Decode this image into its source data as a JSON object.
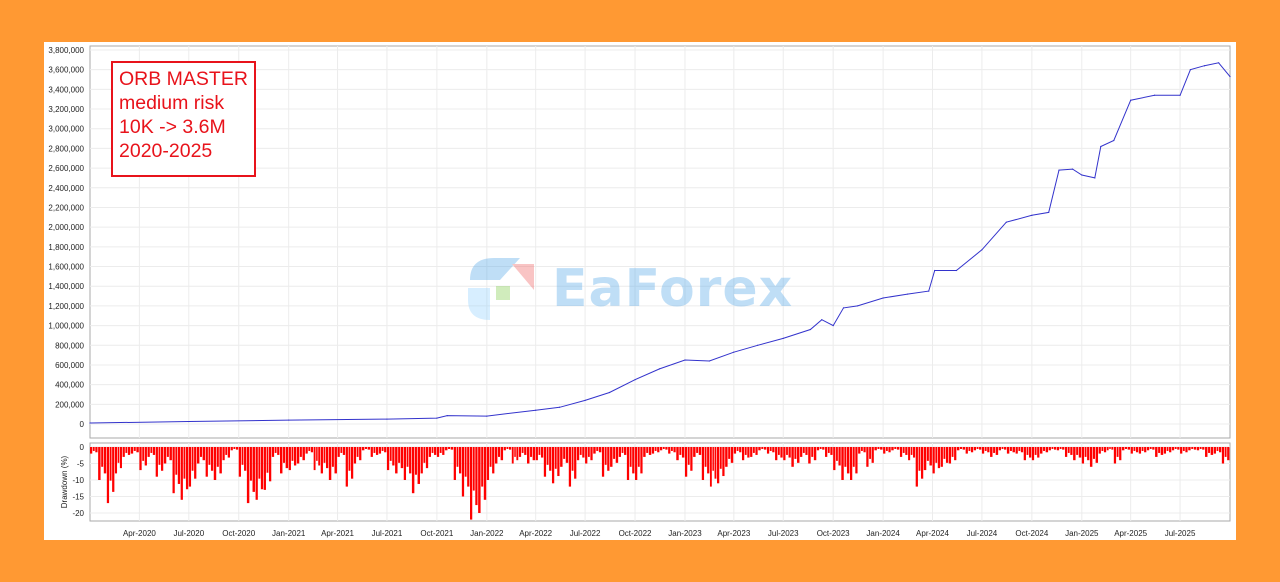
{
  "annotation": {
    "lines": [
      "ORB MASTER",
      "medium risk",
      "10K -> 3.6M",
      "2020-2025"
    ],
    "color": "#e8131b"
  },
  "watermark": {
    "logo_text": "EaForex"
  },
  "colors": {
    "background": "#FF9933",
    "equity_line": "#3333cc",
    "drawdown_bars": "#ff0000"
  },
  "chart_data": [
    {
      "type": "line",
      "title": "",
      "xlabel": "",
      "ylabel": "",
      "ylim": [
        0,
        3800000
      ],
      "yticks": [
        "0",
        "200,000",
        "400,000",
        "600,000",
        "800,000",
        "1,000,000",
        "1,200,000",
        "1,400,000",
        "1,600,000",
        "1,800,000",
        "2,000,000",
        "2,200,000",
        "2,400,000",
        "2,600,000",
        "2,800,000",
        "3,000,000",
        "3,200,000",
        "3,400,000",
        "3,600,000",
        "3,800,000"
      ],
      "xlim": [
        "2020-01-01",
        "2025-10-01"
      ],
      "grid": true,
      "series": [
        {
          "x": [
            "2020-01-01",
            "2020-07-01",
            "2021-01-01",
            "2021-07-01",
            "2021-10-01",
            "2021-10-20",
            "2022-01-01",
            "2022-04-01",
            "2022-05-15",
            "2022-07-01",
            "2022-08-15",
            "2022-10-01",
            "2022-11-15",
            "2023-01-01",
            "2023-02-15",
            "2023-04-01",
            "2023-05-15",
            "2023-07-01",
            "2023-08-20",
            "2023-09-10",
            "2023-10-01",
            "2023-10-20",
            "2023-11-15",
            "2024-01-01",
            "2024-02-15",
            "2024-03-25",
            "2024-04-05",
            "2024-05-15",
            "2024-07-01",
            "2024-08-15",
            "2024-10-01",
            "2024-11-01",
            "2024-11-20",
            "2024-12-15",
            "2025-01-01",
            "2025-01-25",
            "2025-02-05",
            "2025-03-01",
            "2025-04-01",
            "2025-05-15",
            "2025-07-01",
            "2025-07-20",
            "2025-08-15",
            "2025-09-10",
            "2025-10-01"
          ],
          "y": [
            10000,
            25000,
            40000,
            50000,
            60000,
            85000,
            80000,
            140000,
            170000,
            240000,
            320000,
            450000,
            560000,
            650000,
            640000,
            730000,
            800000,
            870000,
            960000,
            1060000,
            1000000,
            1180000,
            1200000,
            1280000,
            1320000,
            1350000,
            1560000,
            1560000,
            1770000,
            2050000,
            2120000,
            2150000,
            2580000,
            2590000,
            2530000,
            2500000,
            2820000,
            2880000,
            3290000,
            3340000,
            3340000,
            3600000,
            3640000,
            3670000,
            3530000
          ]
        }
      ]
    },
    {
      "type": "bar",
      "title": "",
      "ylabel": "Drawdown (%)",
      "ylim": [
        -23,
        0
      ],
      "yticks": [
        "0",
        "-5",
        "-10",
        "-15",
        "-20"
      ],
      "period": "half-month",
      "start": "2020-01-01",
      "values": [
        -2,
        -10,
        -17,
        -8,
        -3,
        -2,
        -7,
        -3,
        -9,
        -5,
        -14,
        -16,
        -12,
        -5,
        -9,
        -10,
        -4,
        -1,
        -9,
        -17,
        -16,
        -13,
        -3,
        -8,
        -7,
        -5,
        -2,
        -7,
        -8,
        -10,
        -3,
        -12,
        -5,
        -1,
        -3,
        -2,
        -7,
        -8,
        -10,
        -14,
        -8,
        -3,
        -3,
        -1,
        -10,
        -15,
        -22,
        -20,
        -10,
        -5,
        -1,
        -5,
        -3,
        -5,
        -4,
        -9,
        -11,
        -6,
        -12,
        -4,
        -5,
        -2,
        -9,
        -6,
        -3,
        -10,
        -10,
        -3,
        -2,
        -1,
        -2,
        -4,
        -9,
        -3,
        -10,
        -12,
        -11,
        -6,
        -2,
        -4,
        -3,
        -1,
        -2,
        -4,
        -4,
        -6,
        -3,
        -5,
        -1,
        -3,
        -7,
        -10,
        -10,
        -2,
        -6,
        -1,
        -2,
        -1,
        -3,
        -4,
        -12,
        -7,
        -8,
        -6,
        -5,
        -1,
        -2,
        -1,
        -2,
        -3,
        -1,
        -2,
        -2,
        -4,
        -4,
        -2,
        -1,
        -1,
        -3,
        -4,
        -5,
        -6,
        -2,
        -1,
        -5,
        -1,
        -2,
        -2,
        -1,
        -3,
        -2,
        -1,
        -2,
        -1,
        -1,
        -3,
        -2,
        -5
      ]
    }
  ],
  "xaxis": {
    "labels": [
      "Apr-2020",
      "Jul-2020",
      "Oct-2020",
      "Jan-2021",
      "Apr-2021",
      "Jul-2021",
      "Oct-2021",
      "Jan-2022",
      "Apr-2022",
      "Jul-2022",
      "Oct-2022",
      "Jan-2023",
      "Apr-2023",
      "Jul-2023",
      "Oct-2023",
      "Jan-2024",
      "Apr-2024",
      "Jul-2024",
      "Oct-2024",
      "Jan-2025",
      "Apr-2025",
      "Jul-2025"
    ]
  }
}
